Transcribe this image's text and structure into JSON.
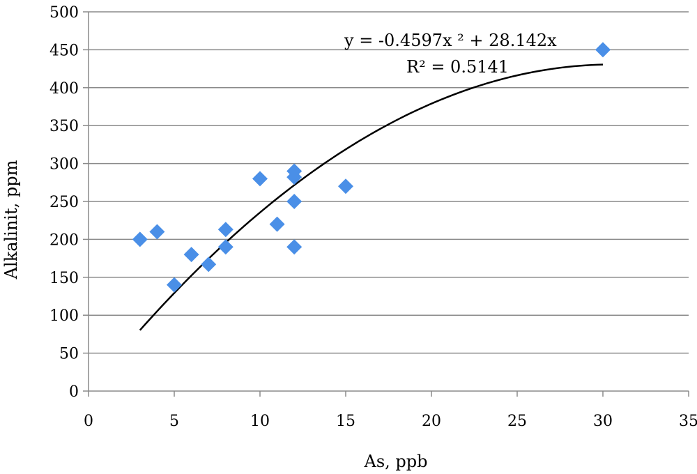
{
  "chart_data": {
    "type": "scatter",
    "title": "",
    "xlabel": "As, ppb",
    "ylabel": "Alkalinit, ppm",
    "xlim": [
      0,
      35
    ],
    "ylim": [
      0,
      500
    ],
    "xticks": [
      0,
      5,
      10,
      15,
      20,
      25,
      30,
      35
    ],
    "yticks": [
      0,
      50,
      100,
      150,
      200,
      250,
      300,
      350,
      400,
      450,
      500
    ],
    "grid": {
      "horizontal": true,
      "vertical": false
    },
    "legend": "none",
    "marker": {
      "shape": "diamond",
      "color": "#4a8fe7"
    },
    "points": [
      {
        "x": 3,
        "y": 200
      },
      {
        "x": 4,
        "y": 210
      },
      {
        "x": 5,
        "y": 140
      },
      {
        "x": 6,
        "y": 180
      },
      {
        "x": 7,
        "y": 167
      },
      {
        "x": 8,
        "y": 213
      },
      {
        "x": 8,
        "y": 190
      },
      {
        "x": 10,
        "y": 280
      },
      {
        "x": 11,
        "y": 220
      },
      {
        "x": 12,
        "y": 290
      },
      {
        "x": 12,
        "y": 282
      },
      {
        "x": 12,
        "y": 250
      },
      {
        "x": 12,
        "y": 190
      },
      {
        "x": 15,
        "y": 270
      },
      {
        "x": 30,
        "y": 450
      }
    ],
    "trendline": {
      "type": "polynomial",
      "coefficients": {
        "a": -0.4597,
        "b": 28.142
      },
      "x_range": [
        3,
        30
      ],
      "color": "#000000",
      "equation_label": "y = -0.4597x ² + 28.142x",
      "r_squared_label": "R² = 0.5141"
    }
  }
}
